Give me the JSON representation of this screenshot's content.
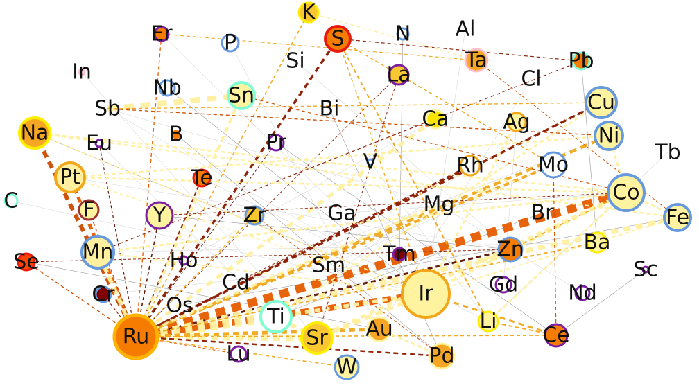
{
  "graph": {
    "nodes": [
      {
        "id": "Ru",
        "fill": "#f57c00",
        "stroke": "#ffb300"
      },
      {
        "id": "Ir",
        "fill": "#fff3a0",
        "stroke": "#f2a71b"
      },
      {
        "id": "Sr",
        "fill": "#f9c72f",
        "stroke": "#ffee00"
      },
      {
        "id": "Co",
        "fill": "#fff3a0",
        "stroke": "#6699dd"
      },
      {
        "id": "Mn",
        "fill": "#fff0a0",
        "stroke": "#6699dd"
      },
      {
        "id": "Ti",
        "fill": "#ffffff",
        "stroke": "#7fffd4"
      },
      {
        "id": "Pt",
        "fill": "#fff0a0",
        "stroke": "#f2a71b"
      },
      {
        "id": "Na",
        "fill": "#f6a623",
        "stroke": "#ffee00"
      },
      {
        "id": "Cu",
        "fill": "#fff3a0",
        "stroke": "#6699dd"
      },
      {
        "id": "Ni",
        "fill": "#fff3a0",
        "stroke": "#6699dd"
      },
      {
        "id": "Sn",
        "fill": "#fff3a0",
        "stroke": "#7fffd4"
      },
      {
        "id": "Fe",
        "fill": "#fff3a0",
        "stroke": "#6699dd"
      },
      {
        "id": "Zn",
        "fill": "#f57c00",
        "stroke": "#6699dd"
      },
      {
        "id": "Mo",
        "fill": "#ffffff",
        "stroke": "#6699dd"
      },
      {
        "id": "Au",
        "fill": "#f6a623",
        "stroke": "#fff3a0"
      },
      {
        "id": "Pd",
        "fill": "#f6a623",
        "stroke": "#fff3a0"
      },
      {
        "id": "W",
        "fill": "#fff3a0",
        "stroke": "#6699dd"
      },
      {
        "id": "Y",
        "fill": "#fff3a0",
        "stroke": "#7b1fa2"
      },
      {
        "id": "S",
        "fill": "#f57c00",
        "stroke": "#e8190b"
      },
      {
        "id": "Ce",
        "fill": "#f57c00",
        "stroke": "#7b1fa2"
      },
      {
        "id": "Ta",
        "fill": "#f6a623",
        "stroke": "#ffc0cb"
      },
      {
        "id": "K",
        "fill": "#f9c72f",
        "stroke": "#ffee00"
      },
      {
        "id": "Rh",
        "fill": "#ffffff",
        "stroke": "#f2a71b"
      },
      {
        "id": "Ba",
        "fill": "#fff3a0",
        "stroke": "#ffee00"
      },
      {
        "id": "Li",
        "fill": "#fff3a0",
        "stroke": "#ffee00"
      },
      {
        "id": "La",
        "fill": "#f9c72f",
        "stroke": "#7b1fa2"
      },
      {
        "id": "Ag",
        "fill": "#fff3a0",
        "stroke": "#f2a71b"
      },
      {
        "id": "Ca",
        "fill": "#f9e400",
        "stroke": "#fff3a0"
      },
      {
        "id": "Zr",
        "fill": "#f9c72f",
        "stroke": "#6699dd"
      },
      {
        "id": "F",
        "fill": "#fff3a0",
        "stroke": "#a0322f"
      },
      {
        "id": "Te",
        "fill": "#f57c00",
        "stroke": "#e8190b"
      },
      {
        "id": "Pb",
        "fill": "#f57c00",
        "stroke": "#7fffd4"
      },
      {
        "id": "Se",
        "fill": "#ff4500",
        "stroke": "#e8190b"
      },
      {
        "id": "Cr",
        "fill": "#800000",
        "stroke": "#6699dd"
      },
      {
        "id": "Er",
        "fill": "#f57c00",
        "stroke": "#7b1fa2"
      },
      {
        "id": "P",
        "fill": "#ffffff",
        "stroke": "#6699dd"
      },
      {
        "id": "Sb",
        "fill": "#fff3a0",
        "stroke": "#fff3a0"
      },
      {
        "id": "Nb",
        "fill": "#ffffff",
        "stroke": "#6699dd"
      },
      {
        "id": "Pr",
        "fill": "#ffffff",
        "stroke": "#7b1fa2"
      },
      {
        "id": "Gd",
        "fill": "#ffffff",
        "stroke": "#7b1fa2"
      },
      {
        "id": "Nd",
        "fill": "#ffffff",
        "stroke": "#7b1fa2"
      },
      {
        "id": "Lu",
        "fill": "#ffffff",
        "stroke": "#7b1fa2"
      },
      {
        "id": "Tm",
        "fill": "#800000",
        "stroke": "#7b1fa2"
      },
      {
        "id": "B",
        "fill": "#f57c00",
        "stroke": "#ffffff"
      },
      {
        "id": "C",
        "fill": "#ffffff",
        "stroke": "#7fffd4"
      },
      {
        "id": "N",
        "fill": "#ffffff",
        "stroke": "#6699dd"
      },
      {
        "id": "Mg",
        "fill": "#fff3a0",
        "stroke": "#ffffff"
      },
      {
        "id": "Ho",
        "fill": "#ffffff",
        "stroke": "#7b1fa2"
      },
      {
        "id": "Eu",
        "fill": "#ffffff",
        "stroke": "#7b1fa2"
      },
      {
        "id": "Sc",
        "fill": "#ffffff",
        "stroke": "#7b1fa2"
      },
      {
        "id": "V",
        "fill": "#ffffff",
        "stroke": "#6699dd"
      },
      {
        "id": "In",
        "fill": "#ffffff",
        "stroke": "#ffc0cb"
      },
      {
        "id": "Al",
        "fill": "#ffffff",
        "stroke": "#ffffff"
      },
      {
        "id": "Si",
        "fill": "#ffffff",
        "stroke": "#ffffff"
      },
      {
        "id": "Bi",
        "fill": "#ffffff",
        "stroke": "#ffffff"
      },
      {
        "id": "Cl",
        "fill": "#ffffff",
        "stroke": "#ffffff"
      },
      {
        "id": "Tb",
        "fill": "#ffffff",
        "stroke": "#ffffff"
      },
      {
        "id": "Ga",
        "fill": "#ffffff",
        "stroke": "#ffffff"
      },
      {
        "id": "Br",
        "fill": "#ffffff",
        "stroke": "#ffffff"
      },
      {
        "id": "Sm",
        "fill": "#ffffff",
        "stroke": "#ffffff"
      },
      {
        "id": "Cd",
        "fill": "#ffffff",
        "stroke": "#ffffff"
      },
      {
        "id": "Os",
        "fill": "#ffffff",
        "stroke": "#ffffff"
      }
    ],
    "edges": [
      {
        "source": "Ru",
        "target": "Co",
        "color": "#e65c00"
      },
      {
        "source": "Ru",
        "target": "Ir",
        "color": "#e65c00"
      },
      {
        "source": "Ru",
        "target": "Na",
        "color": "#cc4a00"
      },
      {
        "source": "Ru",
        "target": "Pt",
        "color": "#e65c00"
      },
      {
        "source": "Ru",
        "target": "S",
        "color": "#8b1a00"
      },
      {
        "source": "Ru",
        "target": "Cu",
        "color": "#8b1a00"
      },
      {
        "source": "Ru",
        "target": "Ni",
        "color": "#f2a71b"
      },
      {
        "source": "Ru",
        "target": "Rh",
        "color": "#8b1a00"
      },
      {
        "source": "Ru",
        "target": "Zn",
        "color": "#5a0f00"
      },
      {
        "source": "Ru",
        "target": "Mo",
        "color": "#f2a71b"
      },
      {
        "source": "Ru",
        "target": "Ti",
        "color": "#fff0a0"
      },
      {
        "source": "Ru",
        "target": "Sr",
        "color": "#fff0a0"
      },
      {
        "source": "Ru",
        "target": "Au",
        "color": "#f2a71b"
      },
      {
        "source": "Ru",
        "target": "Pd",
        "color": "#8b1a00"
      },
      {
        "source": "Ru",
        "target": "Fe",
        "color": "#fff0a0"
      },
      {
        "source": "Ru",
        "target": "Ba",
        "color": "#f2a71b"
      },
      {
        "source": "Ru",
        "target": "Mn",
        "color": "#fff0a0"
      },
      {
        "source": "Ru",
        "target": "Te",
        "color": "#8b1a00"
      },
      {
        "source": "Ru",
        "target": "Y",
        "color": "#5a0f00"
      },
      {
        "source": "Ru",
        "target": "K",
        "color": "#f2a71b"
      },
      {
        "source": "Ru",
        "target": "Ca",
        "color": "#fff0a0"
      },
      {
        "source": "Ru",
        "target": "Zr",
        "color": "#f2a71b"
      },
      {
        "source": "Ru",
        "target": "Er",
        "color": "#e65c00"
      },
      {
        "source": "Ru",
        "target": "F",
        "color": "#cc4a00"
      },
      {
        "source": "Ru",
        "target": "Se",
        "color": "#cc4a00"
      },
      {
        "source": "Ru",
        "target": "Cr",
        "color": "#8b1a00"
      },
      {
        "source": "Ru",
        "target": "Eu",
        "color": "#5a0f00"
      },
      {
        "source": "Ru",
        "target": "Lu",
        "color": "#e65c00"
      },
      {
        "source": "Ru",
        "target": "W",
        "color": "#f2a71b"
      },
      {
        "source": "Ru",
        "target": "Sn",
        "color": "#fff0a0"
      },
      {
        "source": "Ru",
        "target": "Ce",
        "color": "#f2a71b"
      },
      {
        "source": "Ru",
        "target": "La",
        "color": "#8b1a00"
      },
      {
        "source": "Ru",
        "target": "Mg",
        "color": "#fff0a0"
      },
      {
        "source": "Ru",
        "target": "Pr",
        "color": "#5a0f00"
      },
      {
        "source": "Ir",
        "target": "Ce",
        "color": "#f2a71b"
      },
      {
        "source": "Ir",
        "target": "Sr",
        "color": "#fff0a0"
      },
      {
        "source": "Ir",
        "target": "Co",
        "color": "#fff0a0"
      },
      {
        "source": "Ir",
        "target": "Ti",
        "color": "#fff0a0"
      },
      {
        "source": "Ir",
        "target": "Na",
        "color": "#fff0a0"
      },
      {
        "source": "Ir",
        "target": "Mn",
        "color": "#fff0a0"
      },
      {
        "source": "Ir",
        "target": "S",
        "color": "#f2a71b"
      },
      {
        "source": "Ir",
        "target": "Fe",
        "color": "#fff0a0"
      },
      {
        "source": "Ir",
        "target": "Pt",
        "color": "#fff0a0"
      },
      {
        "source": "Sb",
        "target": "Sn",
        "color": "#fff0a0"
      },
      {
        "source": "Sb",
        "target": "Ni",
        "color": "#cc4a00"
      },
      {
        "source": "Sb",
        "target": "Cu",
        "color": "#f2a71b"
      },
      {
        "source": "Na",
        "target": "Co",
        "color": "#fff0a0"
      },
      {
        "source": "Na",
        "target": "Fe",
        "color": "#fff0a0"
      },
      {
        "source": "S",
        "target": "Pb",
        "color": "#8b1a00"
      },
      {
        "source": "S",
        "target": "Mo",
        "color": "#f2a71b"
      },
      {
        "source": "S",
        "target": "Li",
        "color": "#f2a71b"
      },
      {
        "source": "Sn",
        "target": "Co",
        "color": "#cc4a00"
      },
      {
        "source": "Pb",
        "target": "Mn",
        "color": "#8b1a00"
      },
      {
        "source": "Cu",
        "target": "Ti",
        "color": "#fff0a0"
      },
      {
        "source": "Co",
        "target": "Ni",
        "color": "#fff0a0"
      },
      {
        "source": "Co",
        "target": "Fe",
        "color": "#fff0a0"
      },
      {
        "source": "Zn",
        "target": "Co",
        "color": "#f2a71b"
      },
      {
        "source": "Li",
        "target": "Co",
        "color": "#fff0a0"
      },
      {
        "source": "Li",
        "target": "Ce",
        "color": "#f2a71b"
      },
      {
        "source": "Sr",
        "target": "Ti",
        "color": "#fff0a0"
      },
      {
        "source": "Sr",
        "target": "Co",
        "color": "#fff0a0"
      },
      {
        "source": "Au",
        "target": "Pd",
        "color": "#fff0a0"
      },
      {
        "source": "Pt",
        "target": "Ni",
        "color": "#fff0a0"
      },
      {
        "source": "Pt",
        "target": "Co",
        "color": "#fff0a0"
      },
      {
        "source": "Mn",
        "target": "Co",
        "color": "#fff0a0"
      },
      {
        "source": "Se",
        "target": "Zn",
        "color": "#8b1a00"
      },
      {
        "source": "Er",
        "target": "Ta",
        "color": "#f2a71b"
      },
      {
        "source": "K",
        "target": "Ta",
        "color": "#fff0a0"
      },
      {
        "source": "Ta",
        "target": "Fe",
        "color": "#cc4a00"
      },
      {
        "source": "Ce",
        "target": "Mo",
        "color": "#cc4a00"
      },
      {
        "source": "Cu",
        "target": "Cd",
        "color": "#8b1a00"
      },
      {
        "source": "Ag",
        "target": "Ir",
        "color": "#fff0a0"
      },
      {
        "source": "Y",
        "target": "Co",
        "color": "#8b1a00"
      },
      {
        "source": "La",
        "target": "Sr",
        "color": "#8b1a00"
      },
      {
        "source": "Zr",
        "target": "Pd",
        "color": "#cc4a00"
      }
    ]
  }
}
